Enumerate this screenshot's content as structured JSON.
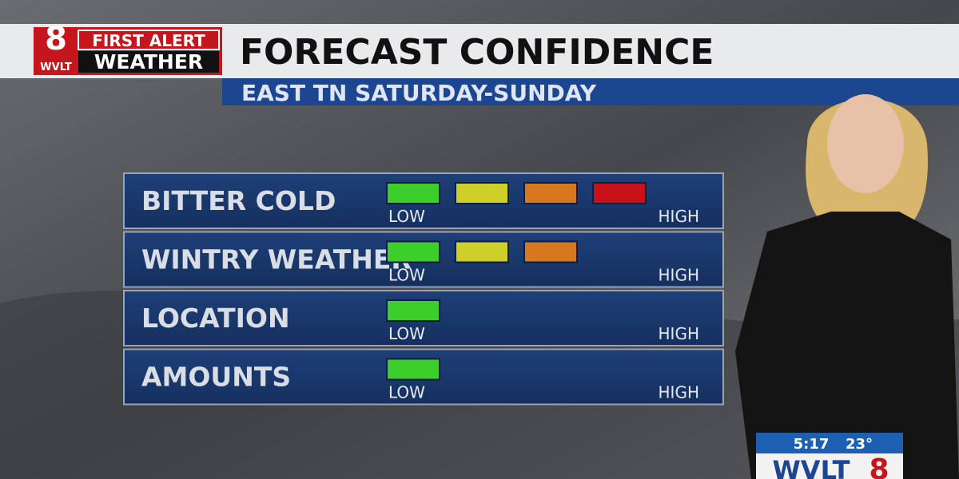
{
  "header": {
    "logo_number": "8",
    "logo_call": "WVLT",
    "logo_line1": "FIRST ALERT",
    "logo_line2": "WEATHER",
    "title": "FORECAST CONFIDENCE",
    "subtitle": "EAST TN SATURDAY-SUNDAY"
  },
  "scale": {
    "low": "LOW",
    "high": "HIGH",
    "colors": [
      "#3ccf2c",
      "#cfcf2a",
      "#d8781e",
      "#c8121a"
    ]
  },
  "rows": [
    {
      "label": "BITTER COLD",
      "level": 4
    },
    {
      "label": "WINTRY WEATHER",
      "level": 3
    },
    {
      "label": "LOCATION",
      "level": 1
    },
    {
      "label": "AMOUNTS",
      "level": 1
    }
  ],
  "bug": {
    "time": "5:17",
    "temp": "23°",
    "station": "WVLT",
    "number": "8"
  }
}
